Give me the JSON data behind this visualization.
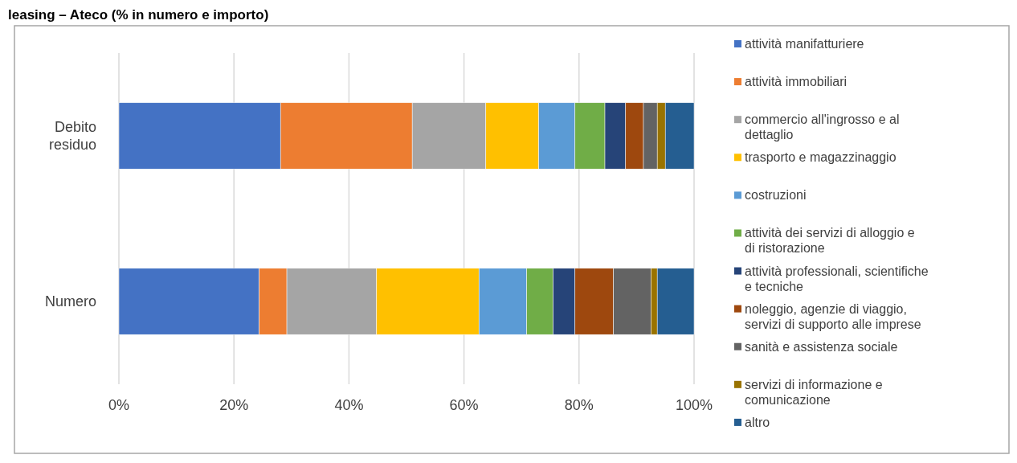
{
  "chart_data": {
    "type": "bar",
    "orientation": "horizontal",
    "stacked": true,
    "title": "leasing – Ateco (% in numero e importo)",
    "categories": [
      "Debito residuo",
      "Numero"
    ],
    "xlim": [
      0,
      100
    ],
    "xticks": [
      {
        "value": 0,
        "label": "0%"
      },
      {
        "value": 20,
        "label": "20%"
      },
      {
        "value": 40,
        "label": "40%"
      },
      {
        "value": 60,
        "label": "60%"
      },
      {
        "value": 80,
        "label": "80%"
      },
      {
        "value": 100,
        "label": "100%"
      }
    ],
    "grid": "x",
    "legend": "right",
    "series": [
      {
        "name": "attività manifatturiere",
        "color": "#4472c4",
        "values": [
          28.1,
          24.4
        ]
      },
      {
        "name": "attività immobiliari",
        "color": "#ed7d31",
        "values": [
          22.9,
          4.8
        ]
      },
      {
        "name": "commercio all'ingrosso e al dettaglio",
        "color": "#a5a5a5",
        "values": [
          12.8,
          15.6
        ]
      },
      {
        "name": "trasporto e magazzinaggio",
        "color": "#ffc000",
        "values": [
          9.2,
          17.8
        ]
      },
      {
        "name": "costruzioni",
        "color": "#5b9bd5",
        "values": [
          6.3,
          8.3
        ]
      },
      {
        "name": "attività dei servizi di alloggio e di ristorazione",
        "color": "#70ad47",
        "values": [
          5.2,
          4.6
        ]
      },
      {
        "name": "attività professionali, scientifiche e tecniche",
        "color": "#264478",
        "values": [
          3.6,
          3.8
        ]
      },
      {
        "name": "noleggio, agenzie di viaggio, servizi di supporto alle imprese",
        "color": "#9e480e",
        "values": [
          3.1,
          6.7
        ]
      },
      {
        "name": "sanità e assistenza sociale",
        "color": "#636363",
        "values": [
          2.4,
          6.5
        ]
      },
      {
        "name": "servizi di informazione e comunicazione",
        "color": "#997300",
        "values": [
          1.4,
          1.1
        ]
      },
      {
        "name": "altro",
        "color": "#255e91",
        "values": [
          5.0,
          6.4
        ]
      }
    ]
  }
}
